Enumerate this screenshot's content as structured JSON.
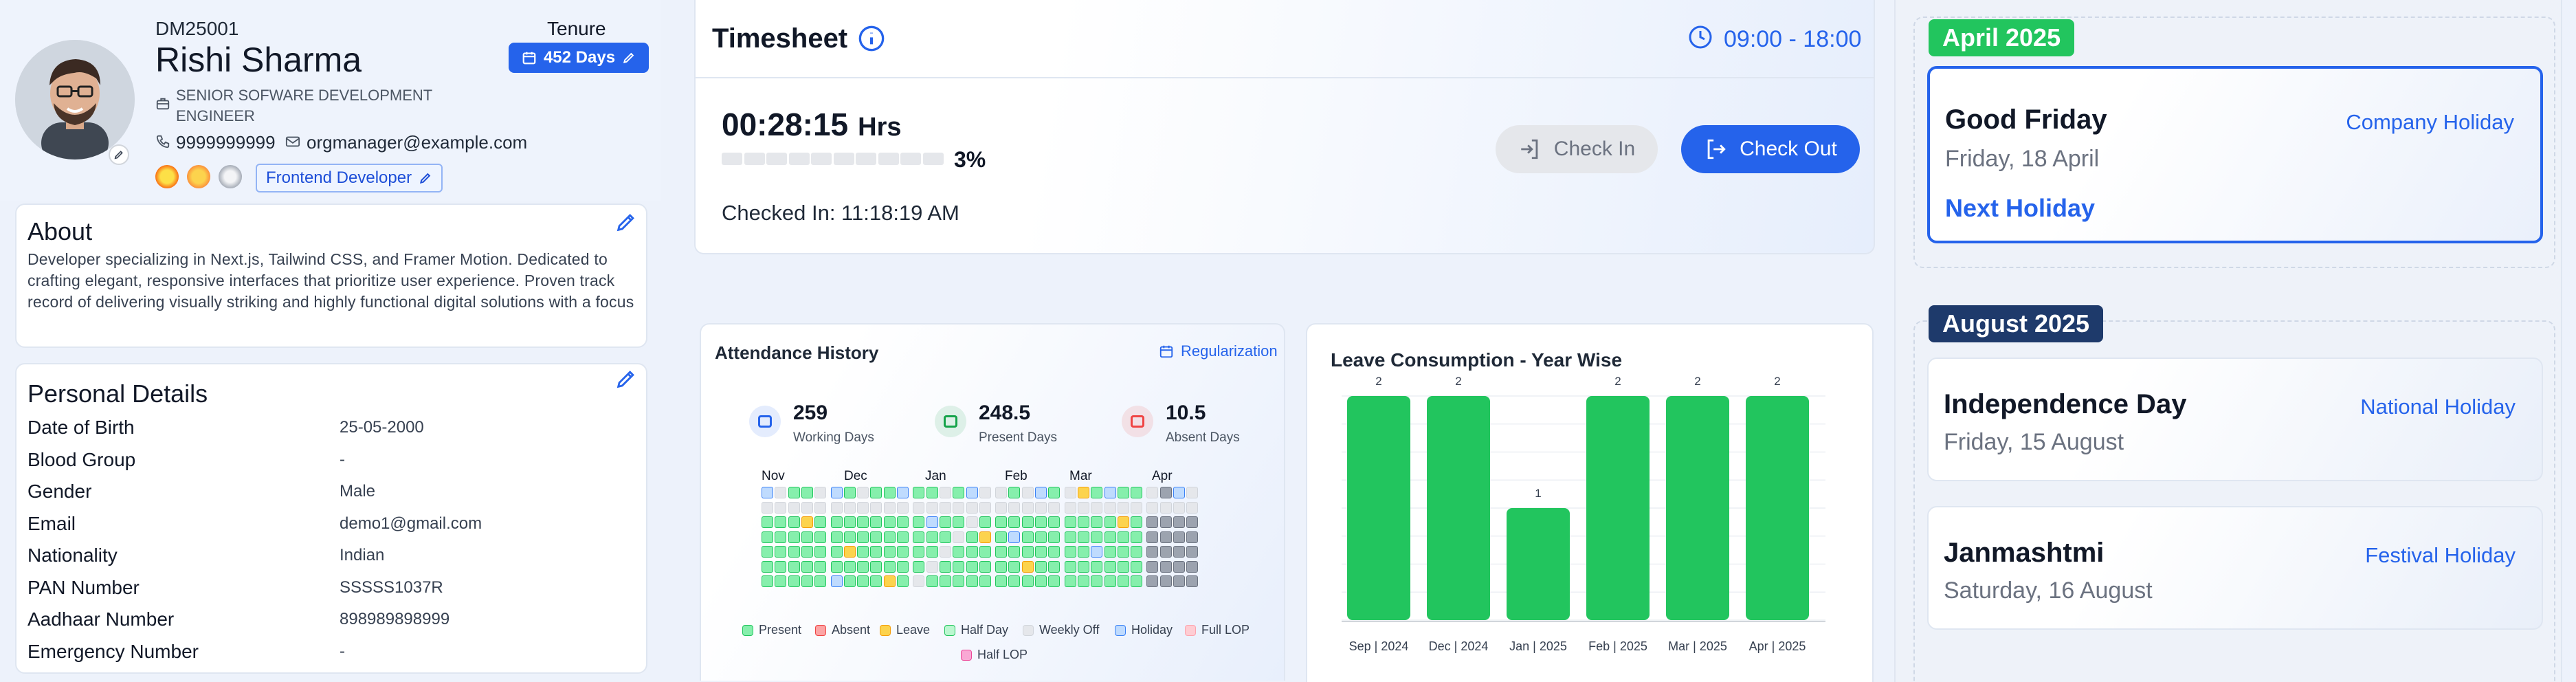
{
  "profile": {
    "employee_id": "DM25001",
    "name": "Rishi Sharma",
    "designation": "SENIOR SOFWARE DEVELOPMENT ENGINEER",
    "phone": "9999999999",
    "email": "orgmanager@example.com",
    "tenure_label": "Tenure",
    "tenure_value": "452 Days",
    "role": "Frontend Developer",
    "icons": [
      "building-icon",
      "phone-icon",
      "mail-icon",
      "calendar-icon",
      "edit-icon",
      "camera-edit-icon"
    ]
  },
  "about": {
    "title": "About",
    "text": "Developer specializing in Next.js, Tailwind CSS, and Framer Motion. Dedicated to crafting elegant, responsive interfaces that prioritize user experience. Proven track record of delivering visually striking and highly functional digital solutions with a focus"
  },
  "personal": {
    "title": "Personal Details",
    "rows": [
      {
        "label": "Date of Birth",
        "value": "25-05-2000"
      },
      {
        "label": "Blood Group",
        "value": "-"
      },
      {
        "label": "Gender",
        "value": "Male"
      },
      {
        "label": "Email",
        "value": "demo1@gmail.com"
      },
      {
        "label": "Nationality",
        "value": "Indian"
      },
      {
        "label": "PAN Number",
        "value": "SSSSS1037R"
      },
      {
        "label": "Aadhaar Number",
        "value": "898989898999"
      },
      {
        "label": "Emergency Number",
        "value": "-"
      }
    ]
  },
  "timesheet": {
    "title": "Timesheet",
    "shift": "09:00 - 18:00",
    "elapsed": "00:28:15",
    "elapsed_unit": "Hrs",
    "progress_percent": "3%",
    "progress_fraction": 0.03,
    "checked_in": "Checked In: 11:18:19 AM",
    "check_in_label": "Check In",
    "check_out_label": "Check Out"
  },
  "attendance": {
    "title": "Attendance History",
    "regularization": "Regularization",
    "stats": [
      {
        "value": "259",
        "label": "Working Days",
        "color": "#2563eb"
      },
      {
        "value": "248.5",
        "label": "Present Days",
        "color": "#16a34a"
      },
      {
        "value": "10.5",
        "label": "Absent Days",
        "color": "#ef4444"
      }
    ],
    "months": [
      "Nov",
      "Dec",
      "Jan",
      "Feb",
      "Mar",
      "Apr"
    ],
    "legend": [
      {
        "label": "Present",
        "color": "#86efac",
        "border": "#22c55e"
      },
      {
        "label": "Absent",
        "color": "#fca5a5",
        "border": "#ef4444"
      },
      {
        "label": "Leave",
        "color": "#fcd34d",
        "border": "#f59e0b"
      },
      {
        "label": "Half Day",
        "color": "#bbf7d0",
        "border": "#22c55e"
      },
      {
        "label": "Weekly Off",
        "color": "#e5e7eb",
        "border": "#d1d5db"
      },
      {
        "label": "Holiday",
        "color": "#bfdbfe",
        "border": "#3b82f6"
      },
      {
        "label": "Full LOP",
        "color": "#fecdd3",
        "border": "#fda4af"
      },
      {
        "label": "Half LOP",
        "color": "#f9a8d4",
        "border": "#ec4899"
      }
    ]
  },
  "chart_data": {
    "type": "bar",
    "title": "Leave Consumption - Year Wise",
    "categories": [
      "Sep | 2024",
      "Dec | 2024",
      "Jan | 2025",
      "Feb | 2025",
      "Mar | 2025",
      "Apr | 2025"
    ],
    "values": [
      2,
      2,
      1,
      2,
      2,
      2
    ],
    "ylim": [
      0,
      2
    ],
    "bar_color": "#22c55e",
    "grid": true
  },
  "holidays": {
    "upcoming_month": "April 2025",
    "next": {
      "name": "Good Friday",
      "date": "Friday, 18 April",
      "type": "Company Holiday",
      "badge": "Next Holiday"
    },
    "later_month": "August 2025",
    "list": [
      {
        "name": "Independence Day",
        "date": "Friday, 15 August",
        "type": "National Holiday"
      },
      {
        "name": "Janmashtmi",
        "date": "Saturday, 16 August",
        "type": "Festival Holiday"
      }
    ]
  }
}
